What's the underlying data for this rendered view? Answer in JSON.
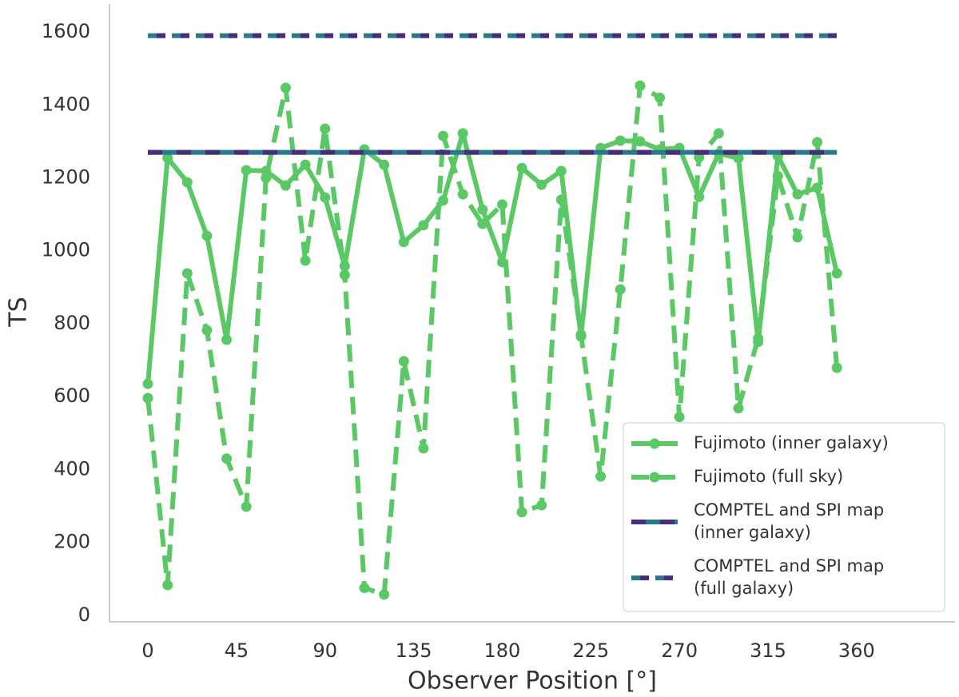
{
  "chart_data": {
    "type": "line",
    "xlabel": "Observer Position [°]",
    "ylabel": "TS",
    "x": [
      0,
      10,
      20,
      30,
      40,
      50,
      60,
      70,
      80,
      90,
      100,
      110,
      120,
      130,
      140,
      150,
      160,
      170,
      180,
      190,
      200,
      210,
      220,
      230,
      240,
      250,
      260,
      270,
      280,
      290,
      300,
      310,
      320,
      330,
      340,
      350
    ],
    "series": [
      {
        "name": "Fujimoto (inner galaxy)",
        "color": "#5ac864",
        "style": "solid",
        "marker": true,
        "values": [
          635,
          1255,
          1188,
          1041,
          756,
          1221,
          1219,
          1179,
          1236,
          1146,
          958,
          1278,
          1236,
          1024,
          1070,
          1138,
          1322,
          1113,
          969,
          1227,
          1181,
          1219,
          765,
          1282,
          1302,
          1300,
          1278,
          1282,
          1148,
          1267,
          1254,
          750,
          1260,
          1155,
          1173,
          938
        ]
      },
      {
        "name": "Fujimoto (full sky)",
        "color": "#5ac864",
        "style": "dashed",
        "marker": true,
        "values": [
          596,
          83,
          938,
          782,
          430,
          298,
          1200,
          1447,
          973,
          1335,
          934,
          75,
          57,
          697,
          458,
          1315,
          1155,
          1074,
          1127,
          283,
          302,
          1140,
          770,
          381,
          894,
          1453,
          1420,
          544,
          1256,
          1322,
          568,
          760,
          1205,
          1037,
          1298,
          679
        ]
      }
    ],
    "hlines": [
      {
        "name": "COMPTEL and SPI map\n(inner galaxy)",
        "value": 1270,
        "color": "#472d7b",
        "style": "solid"
      },
      {
        "name": "COMPTEL and SPI map\n(full galaxy)",
        "value": 1590,
        "color": "#472d7b",
        "style": "dashed"
      }
    ],
    "xlim": [
      -19.5,
      410
    ],
    "ylim": [
      -18,
      1677
    ],
    "xticks": [
      0,
      45,
      90,
      135,
      180,
      225,
      270,
      315,
      360
    ],
    "yticks": [
      0,
      200,
      400,
      600,
      800,
      1000,
      1200,
      1400,
      1600
    ],
    "grid": false,
    "legend": "lower right"
  }
}
